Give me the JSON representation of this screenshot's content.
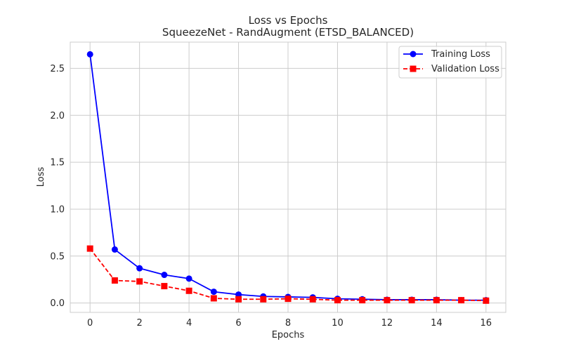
{
  "chart_data": {
    "type": "line",
    "title": "Loss vs Epochs",
    "subtitle": "SqueezeNet - RandAugment (ETSD_BALANCED)",
    "xlabel": "Epochs",
    "ylabel": "Loss",
    "xlim": [
      -0.8,
      16.8
    ],
    "ylim": [
      -0.1,
      2.78
    ],
    "xticks": [
      0,
      2,
      4,
      6,
      8,
      10,
      12,
      14,
      16
    ],
    "yticks": [
      0.0,
      0.5,
      1.0,
      1.5,
      2.0,
      2.5
    ],
    "ytick_labels": [
      "0.0",
      "0.5",
      "1.0",
      "1.5",
      "2.0",
      "2.5"
    ],
    "grid": true,
    "legend_position": "top-right",
    "x": [
      0,
      1,
      2,
      3,
      4,
      5,
      6,
      7,
      8,
      9,
      10,
      11,
      12,
      13,
      14,
      15,
      16
    ],
    "series": [
      {
        "name": "Training Loss",
        "color": "#0000ff",
        "marker": "circle",
        "line": "solid",
        "values": [
          2.65,
          0.57,
          0.37,
          0.3,
          0.26,
          0.12,
          0.09,
          0.07,
          0.065,
          0.06,
          0.045,
          0.04,
          0.035,
          0.035,
          0.035,
          0.03,
          0.03
        ]
      },
      {
        "name": "Validation Loss",
        "color": "#ff0000",
        "marker": "square",
        "line": "dashed",
        "values": [
          0.58,
          0.24,
          0.23,
          0.18,
          0.13,
          0.05,
          0.04,
          0.04,
          0.045,
          0.04,
          0.03,
          0.03,
          0.03,
          0.03,
          0.03,
          0.03,
          0.025
        ]
      }
    ]
  }
}
